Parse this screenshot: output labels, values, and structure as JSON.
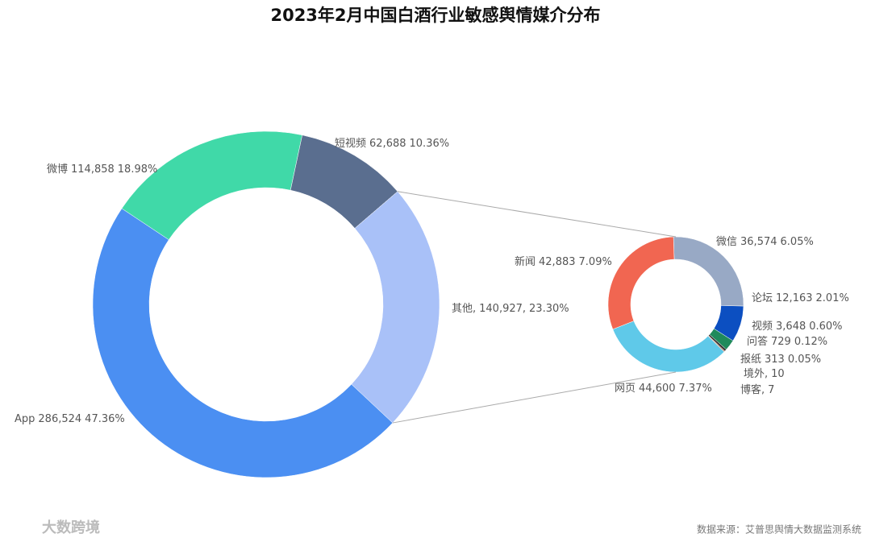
{
  "chart_data": [
    {
      "type": "donut",
      "title": "2023年2月中国白酒行业敏感舆情媒介分布",
      "categories": [
        "短视频",
        "其他,",
        "App",
        "微博"
      ],
      "values": [
        62688,
        140927,
        286524,
        114858
      ],
      "value_labels": [
        "62,688",
        "140,927,",
        "286,524",
        "114,858"
      ],
      "percent_labels": [
        "10.36%",
        "23.30%",
        "47.36%",
        "18.98%"
      ],
      "colors": [
        "#5a6e8f",
        "#a9c1f8",
        "#4b8ff2",
        "#40d9a8"
      ]
    },
    {
      "type": "donut",
      "categories": [
        "微信",
        "论坛",
        "视频",
        "问答",
        "报纸",
        "境外,",
        "博客,",
        "网页",
        "新闻"
      ],
      "values": [
        36574,
        12163,
        3648,
        729,
        313,
        10,
        7,
        44600,
        42883
      ],
      "value_labels": [
        "36,574",
        "12,163",
        "3,648",
        "729",
        "313",
        "10",
        "7",
        "44,600",
        "42,883"
      ],
      "percent_labels": [
        "6.05%",
        "2.01%",
        "0.60%",
        "0.12%",
        "0.05%",
        null,
        null,
        "7.37%",
        "7.09%"
      ],
      "colors": [
        "#98a9c5",
        "#0c4fc1",
        "#1f8a5b",
        "#333333",
        "#c27a55",
        "#888888",
        "#666666",
        "#5fc9e9",
        "#f16651"
      ]
    }
  ],
  "source": "数据来源：艾普思舆情大数据监测系统",
  "watermark": "大数跨境"
}
